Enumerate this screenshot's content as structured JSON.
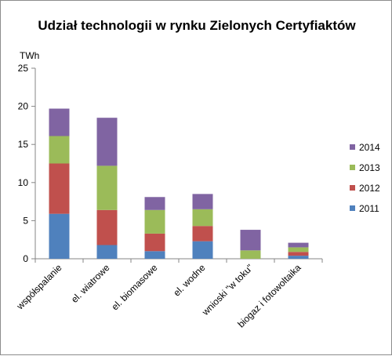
{
  "chart_data": {
    "type": "bar",
    "stacked": true,
    "title": "Udział technologii w rynku Zielonych Certyfiaktów",
    "unit_label": "TWh",
    "xlabel": "",
    "ylabel": "",
    "ylim": [
      0,
      25
    ],
    "yticks": [
      0,
      5,
      10,
      15,
      20,
      25
    ],
    "grid": false,
    "legend_position": "right",
    "categories": [
      "współspalanie",
      "el. wiatrowe",
      "el. biomasowe",
      "el. wodne",
      "wnioski \"w toku\"",
      "biogaz i fotowoltaika"
    ],
    "series": [
      {
        "name": "2011",
        "color": "#4F81BD",
        "values": [
          5.9,
          1.8,
          1.0,
          2.3,
          0.0,
          0.4
        ]
      },
      {
        "name": "2012",
        "color": "#C0504D",
        "values": [
          6.6,
          4.6,
          2.3,
          2.0,
          0.0,
          0.5
        ]
      },
      {
        "name": "2013",
        "color": "#9BBB59",
        "values": [
          3.6,
          5.8,
          3.1,
          2.2,
          1.1,
          0.6
        ]
      },
      {
        "name": "2014",
        "color": "#8064A2",
        "values": [
          3.6,
          6.3,
          1.7,
          2.0,
          2.7,
          0.6
        ]
      }
    ]
  }
}
